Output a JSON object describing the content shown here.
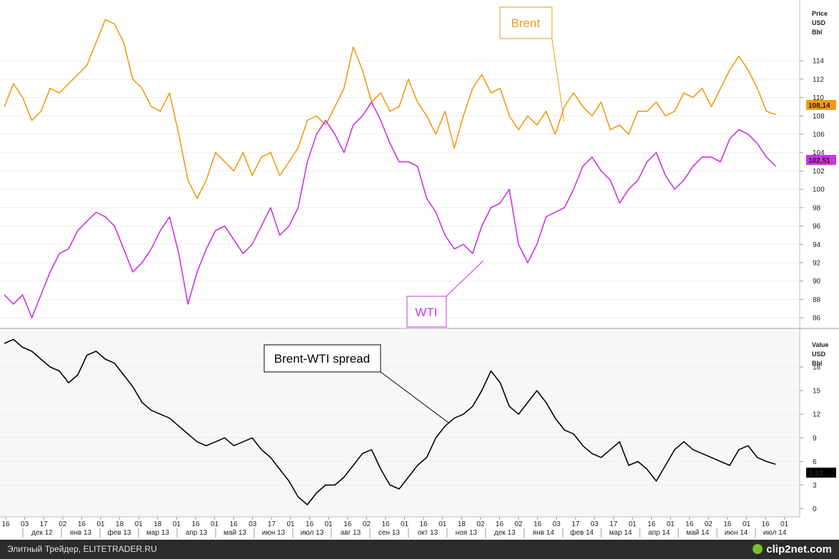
{
  "footer": {
    "source": "Элитный Трейдер, ELITETRADER.RU",
    "logo": "clip2net.com"
  },
  "colors": {
    "brent": "#F29A16",
    "wti": "#CC33E6",
    "spread": "#000000",
    "last_price_bg_brent": "#F29A16",
    "last_price_bg_wti": "#CC33E6",
    "last_value_bg_spread": "#000000"
  },
  "chart_data": [
    {
      "type": "line",
      "title": "",
      "panel": "price",
      "axis_header": [
        "Price",
        "USD",
        "Bbl"
      ],
      "ylim": [
        85,
        120
      ],
      "yticks": [
        86,
        88,
        90,
        92,
        94,
        96,
        98,
        100,
        102,
        104,
        106,
        108,
        110,
        112,
        114
      ],
      "x_range": [
        0,
        86
      ],
      "series": [
        {
          "name": "Brent",
          "label": "Brent",
          "last_value": "108,14",
          "points": [
            [
              0,
              109
            ],
            [
              1,
              111.5
            ],
            [
              2,
              110
            ],
            [
              3,
              107.5
            ],
            [
              4,
              108.5
            ],
            [
              5,
              111
            ],
            [
              6,
              110.5
            ],
            [
              7,
              111.5
            ],
            [
              8,
              112.5
            ],
            [
              9,
              113.5
            ],
            [
              10,
              116
            ],
            [
              11,
              118.5
            ],
            [
              12,
              118
            ],
            [
              13,
              116
            ],
            [
              14,
              112
            ],
            [
              15,
              111
            ],
            [
              16,
              109
            ],
            [
              17,
              108.5
            ],
            [
              18,
              110.5
            ],
            [
              19,
              106
            ],
            [
              20,
              101
            ],
            [
              21,
              99
            ],
            [
              22,
              101
            ],
            [
              23,
              104
            ],
            [
              24,
              103
            ],
            [
              25,
              102
            ],
            [
              26,
              104
            ],
            [
              27,
              101.5
            ],
            [
              28,
              103.5
            ],
            [
              29,
              104
            ],
            [
              30,
              101.5
            ],
            [
              31,
              103
            ],
            [
              32,
              104.5
            ],
            [
              33,
              107.5
            ],
            [
              34,
              108
            ],
            [
              35,
              107
            ],
            [
              36,
              109
            ],
            [
              37,
              111
            ],
            [
              38,
              115.5
            ],
            [
              39,
              113
            ],
            [
              40,
              109.5
            ],
            [
              41,
              110.5
            ],
            [
              42,
              108.5
            ],
            [
              43,
              109
            ],
            [
              44,
              112
            ],
            [
              45,
              109.5
            ],
            [
              46,
              108
            ],
            [
              47,
              106
            ],
            [
              48,
              108.5
            ],
            [
              49,
              104.5
            ],
            [
              50,
              108
            ],
            [
              51,
              111
            ],
            [
              52,
              112.5
            ],
            [
              53,
              110.5
            ],
            [
              54,
              111
            ],
            [
              55,
              108
            ],
            [
              56,
              106.5
            ],
            [
              57,
              108
            ],
            [
              58,
              107
            ],
            [
              59,
              108.5
            ],
            [
              60,
              106
            ],
            [
              61,
              109
            ],
            [
              62,
              110.5
            ],
            [
              63,
              109
            ],
            [
              64,
              108
            ],
            [
              65,
              109.5
            ],
            [
              66,
              106.5
            ],
            [
              67,
              107
            ],
            [
              68,
              106
            ],
            [
              69,
              108.5
            ],
            [
              70,
              108.5
            ],
            [
              71,
              109.5
            ],
            [
              72,
              108
            ],
            [
              73,
              108.5
            ],
            [
              74,
              110.5
            ],
            [
              75,
              110
            ],
            [
              76,
              111
            ],
            [
              77,
              109
            ],
            [
              78,
              111
            ],
            [
              79,
              113
            ],
            [
              80,
              114.5
            ],
            [
              81,
              113
            ],
            [
              82,
              111
            ],
            [
              83,
              108.5
            ],
            [
              84,
              108.14
            ]
          ]
        },
        {
          "name": "WTI",
          "label": "WTI",
          "last_value": "102,51",
          "points": [
            [
              0,
              88.5
            ],
            [
              1,
              87.5
            ],
            [
              2,
              88.5
            ],
            [
              3,
              86
            ],
            [
              4,
              88.5
            ],
            [
              5,
              91
            ],
            [
              6,
              93
            ],
            [
              7,
              93.5
            ],
            [
              8,
              95.5
            ],
            [
              9,
              96.5
            ],
            [
              10,
              97.5
            ],
            [
              11,
              97
            ],
            [
              12,
              96
            ],
            [
              13,
              93.5
            ],
            [
              14,
              91
            ],
            [
              15,
              92
            ],
            [
              16,
              93.5
            ],
            [
              17,
              95.5
            ],
            [
              18,
              97
            ],
            [
              19,
              93
            ],
            [
              20,
              87.5
            ],
            [
              21,
              91
            ],
            [
              22,
              93.5
            ],
            [
              23,
              95.5
            ],
            [
              24,
              96
            ],
            [
              25,
              94.5
            ],
            [
              26,
              93
            ],
            [
              27,
              94
            ],
            [
              28,
              96
            ],
            [
              29,
              98
            ],
            [
              30,
              95
            ],
            [
              31,
              96
            ],
            [
              32,
              98
            ],
            [
              33,
              103
            ],
            [
              34,
              106
            ],
            [
              35,
              107.5
            ],
            [
              36,
              106
            ],
            [
              37,
              104
            ],
            [
              38,
              107
            ],
            [
              39,
              108
            ],
            [
              40,
              109.5
            ],
            [
              41,
              107.5
            ],
            [
              42,
              105
            ],
            [
              43,
              103
            ],
            [
              44,
              103
            ],
            [
              45,
              102.5
            ],
            [
              46,
              99
            ],
            [
              47,
              97.5
            ],
            [
              48,
              95
            ],
            [
              49,
              93.5
            ],
            [
              50,
              94
            ],
            [
              51,
              93
            ],
            [
              52,
              96
            ],
            [
              53,
              98
            ],
            [
              54,
              98.5
            ],
            [
              55,
              100
            ],
            [
              56,
              94
            ],
            [
              57,
              92
            ],
            [
              58,
              94
            ],
            [
              59,
              97
            ],
            [
              60,
              97.5
            ],
            [
              61,
              98
            ],
            [
              62,
              100
            ],
            [
              63,
              102.5
            ],
            [
              64,
              103.5
            ],
            [
              65,
              102
            ],
            [
              66,
              101
            ],
            [
              67,
              98.5
            ],
            [
              68,
              100
            ],
            [
              69,
              101
            ],
            [
              70,
              103
            ],
            [
              71,
              104
            ],
            [
              72,
              101.5
            ],
            [
              73,
              100
            ],
            [
              74,
              101
            ],
            [
              75,
              102.5
            ],
            [
              76,
              103.5
            ],
            [
              77,
              103.5
            ],
            [
              78,
              103
            ],
            [
              79,
              105.5
            ],
            [
              80,
              106.5
            ],
            [
              81,
              106
            ],
            [
              82,
              105
            ],
            [
              83,
              103.5
            ],
            [
              84,
              102.51
            ]
          ]
        }
      ]
    },
    {
      "type": "line",
      "title": "",
      "panel": "spread",
      "axis_header": [
        "Value",
        "USD",
        "Bbl"
      ],
      "ylim": [
        -0.5,
        22
      ],
      "yticks": [
        0,
        3,
        6,
        9,
        12,
        15,
        18
      ],
      "x_range": [
        0,
        86
      ],
      "series": [
        {
          "name": "Brent-WTI spread",
          "label": "Brent-WTI spread",
          "last_value": "5,63",
          "points": [
            [
              0,
              21
            ],
            [
              1,
              21.5
            ],
            [
              2,
              20.5
            ],
            [
              3,
              20
            ],
            [
              4,
              19
            ],
            [
              5,
              18
            ],
            [
              6,
              17.5
            ],
            [
              7,
              16
            ],
            [
              8,
              17
            ],
            [
              9,
              19.5
            ],
            [
              10,
              20
            ],
            [
              11,
              19
            ],
            [
              12,
              18.5
            ],
            [
              13,
              17
            ],
            [
              14,
              15.5
            ],
            [
              15,
              13.5
            ],
            [
              16,
              12.5
            ],
            [
              17,
              12
            ],
            [
              18,
              11.5
            ],
            [
              19,
              10.5
            ],
            [
              20,
              9.5
            ],
            [
              21,
              8.5
            ],
            [
              22,
              8
            ],
            [
              23,
              8.5
            ],
            [
              24,
              9
            ],
            [
              25,
              8
            ],
            [
              26,
              8.5
            ],
            [
              27,
              9
            ],
            [
              28,
              7.5
            ],
            [
              29,
              6.5
            ],
            [
              30,
              5
            ],
            [
              31,
              3.5
            ],
            [
              32,
              1.5
            ],
            [
              33,
              0.5
            ],
            [
              34,
              2
            ],
            [
              35,
              3
            ],
            [
              36,
              3
            ],
            [
              37,
              4
            ],
            [
              38,
              5.5
            ],
            [
              39,
              7
            ],
            [
              40,
              7.5
            ],
            [
              41,
              5
            ],
            [
              42,
              3
            ],
            [
              43,
              2.5
            ],
            [
              44,
              4
            ],
            [
              45,
              5.5
            ],
            [
              46,
              6.5
            ],
            [
              47,
              9
            ],
            [
              48,
              10.5
            ],
            [
              49,
              11.5
            ],
            [
              50,
              12
            ],
            [
              51,
              13
            ],
            [
              52,
              15
            ],
            [
              53,
              17.5
            ],
            [
              54,
              16
            ],
            [
              55,
              13
            ],
            [
              56,
              12
            ],
            [
              57,
              13.5
            ],
            [
              58,
              15
            ],
            [
              59,
              13.5
            ],
            [
              60,
              11.5
            ],
            [
              61,
              10
            ],
            [
              62,
              9.5
            ],
            [
              63,
              8
            ],
            [
              64,
              7
            ],
            [
              65,
              6.5
            ],
            [
              66,
              7.5
            ],
            [
              67,
              8.5
            ],
            [
              68,
              5.5
            ],
            [
              69,
              6
            ],
            [
              70,
              5
            ],
            [
              71,
              3.5
            ],
            [
              72,
              5.5
            ],
            [
              73,
              7.5
            ],
            [
              74,
              8.5
            ],
            [
              75,
              7.5
            ],
            [
              76,
              7
            ],
            [
              77,
              6.5
            ],
            [
              78,
              6
            ],
            [
              79,
              5.5
            ],
            [
              80,
              7.5
            ],
            [
              81,
              8
            ],
            [
              82,
              6.5
            ],
            [
              83,
              6
            ],
            [
              84,
              5.63
            ]
          ]
        }
      ]
    }
  ],
  "x_axis": {
    "day_ticks": [
      "16",
      "03",
      "17",
      "02",
      "16",
      "01",
      "18",
      "01",
      "18",
      "01",
      "16",
      "01",
      "16",
      "03",
      "17",
      "01",
      "16",
      "01",
      "16",
      "02",
      "16",
      "01",
      "16",
      "01",
      "18",
      "02",
      "16",
      "02",
      "16",
      "03",
      "17",
      "03",
      "17",
      "01",
      "16",
      "01",
      "16",
      "02",
      "16",
      "01",
      "16",
      "01"
    ],
    "months": [
      "дек 12",
      "янв 13",
      "фев 13",
      "мар 13",
      "апр 13",
      "май 13",
      "июн 13",
      "июл 13",
      "авг 13",
      "сен 13",
      "окт 13",
      "ноя 13",
      "дек 13",
      "янв 14",
      "фев 14",
      "мар 14",
      "апр 14",
      "май 14",
      "июн 14",
      "июл 14"
    ]
  }
}
